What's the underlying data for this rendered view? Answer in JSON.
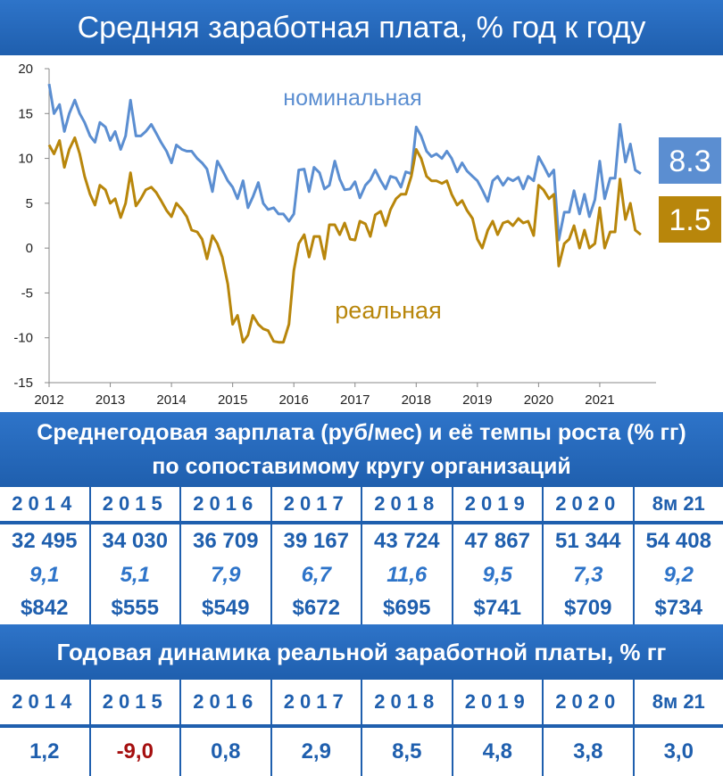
{
  "title": "Средняя заработная плата, % год к году",
  "chart_data": {
    "type": "line",
    "x_ticks": [
      "2012",
      "2013",
      "2014",
      "2015",
      "2016",
      "2017",
      "2018",
      "2019",
      "2020",
      "2021"
    ],
    "y_ticks": [
      "20",
      "15",
      "10",
      "5",
      "0",
      "-5",
      "-10",
      "-15"
    ],
    "ylim": [
      -15,
      20
    ],
    "xlim": [
      2012.0,
      2021.92
    ],
    "grid": false,
    "annotations": {
      "nominal_label": "номинальная",
      "real_label": "реальная"
    },
    "end_badges": {
      "nominal": "8.3",
      "real": "1.5"
    },
    "colors": {
      "nominal": "#5b8ed1",
      "real": "#b8860b"
    },
    "series": [
      {
        "name": "номинальная",
        "x": [
          2012.0,
          2012.08,
          2012.17,
          2012.25,
          2012.33,
          2012.42,
          2012.5,
          2012.58,
          2012.67,
          2012.75,
          2012.83,
          2012.92,
          2013.0,
          2013.08,
          2013.17,
          2013.25,
          2013.33,
          2013.42,
          2013.5,
          2013.58,
          2013.67,
          2013.75,
          2013.83,
          2013.92,
          2014.0,
          2014.08,
          2014.17,
          2014.25,
          2014.33,
          2014.42,
          2014.5,
          2014.58,
          2014.67,
          2014.75,
          2014.83,
          2014.92,
          2015.0,
          2015.08,
          2015.17,
          2015.25,
          2015.33,
          2015.42,
          2015.5,
          2015.58,
          2015.67,
          2015.75,
          2015.83,
          2015.92,
          2016.0,
          2016.08,
          2016.17,
          2016.25,
          2016.33,
          2016.42,
          2016.5,
          2016.58,
          2016.67,
          2016.75,
          2016.83,
          2016.92,
          2017.0,
          2017.08,
          2017.17,
          2017.25,
          2017.33,
          2017.42,
          2017.5,
          2017.58,
          2017.67,
          2017.75,
          2017.83,
          2017.92,
          2018.0,
          2018.08,
          2018.17,
          2018.25,
          2018.33,
          2018.42,
          2018.5,
          2018.58,
          2018.67,
          2018.75,
          2018.83,
          2018.92,
          2019.0,
          2019.08,
          2019.17,
          2019.25,
          2019.33,
          2019.42,
          2019.5,
          2019.58,
          2019.67,
          2019.75,
          2019.83,
          2019.92,
          2020.0,
          2020.08,
          2020.17,
          2020.25,
          2020.33,
          2020.42,
          2020.5,
          2020.58,
          2020.67,
          2020.75,
          2020.83,
          2020.92,
          2021.0,
          2021.08,
          2021.17,
          2021.25,
          2021.33,
          2021.42,
          2021.5,
          2021.58,
          2021.67
        ],
        "y": [
          18.3,
          15.0,
          16.0,
          13.0,
          15.0,
          16.5,
          15.0,
          14.0,
          12.5,
          11.8,
          14.0,
          13.5,
          12.0,
          13.0,
          11.0,
          12.5,
          16.5,
          12.5,
          12.5,
          13.0,
          13.8,
          12.8,
          11.8,
          10.8,
          9.5,
          11.5,
          11.0,
          10.8,
          10.8,
          10.0,
          9.5,
          8.8,
          6.3,
          9.7,
          8.7,
          7.5,
          6.8,
          5.5,
          7.5,
          4.5,
          5.7,
          7.3,
          5.0,
          4.3,
          4.5,
          3.8,
          3.8,
          3.0,
          3.8,
          8.7,
          8.8,
          6.3,
          9.0,
          8.4,
          6.6,
          7.0,
          9.7,
          7.7,
          6.5,
          6.6,
          7.4,
          5.6,
          7.0,
          7.6,
          8.7,
          7.5,
          6.6,
          8.0,
          7.8,
          6.8,
          8.5,
          8.3,
          13.5,
          12.5,
          10.8,
          10.2,
          10.5,
          10.0,
          10.8,
          10.0,
          8.5,
          9.5,
          8.6,
          8.0,
          7.5,
          6.5,
          5.2,
          7.5,
          8.0,
          7.0,
          7.8,
          7.5,
          7.9,
          6.6,
          8.0,
          7.5,
          10.2,
          9.2,
          8.0,
          8.7,
          0.9,
          4.0,
          4.0,
          6.4,
          3.8,
          6.0,
          3.5,
          5.4,
          9.7,
          5.5,
          7.8,
          7.8,
          13.8,
          9.6,
          11.6,
          8.7,
          8.3
        ]
      },
      {
        "name": "реальная",
        "x": [
          2012.0,
          2012.08,
          2012.17,
          2012.25,
          2012.33,
          2012.42,
          2012.5,
          2012.58,
          2012.67,
          2012.75,
          2012.83,
          2012.92,
          2013.0,
          2013.08,
          2013.17,
          2013.25,
          2013.33,
          2013.42,
          2013.5,
          2013.58,
          2013.67,
          2013.75,
          2013.83,
          2013.92,
          2014.0,
          2014.08,
          2014.17,
          2014.25,
          2014.33,
          2014.42,
          2014.5,
          2014.58,
          2014.67,
          2014.75,
          2014.83,
          2014.92,
          2015.0,
          2015.08,
          2015.17,
          2015.25,
          2015.33,
          2015.42,
          2015.5,
          2015.58,
          2015.67,
          2015.75,
          2015.83,
          2015.92,
          2016.0,
          2016.08,
          2016.17,
          2016.25,
          2016.33,
          2016.42,
          2016.5,
          2016.58,
          2016.67,
          2016.75,
          2016.83,
          2016.92,
          2017.0,
          2017.08,
          2017.17,
          2017.25,
          2017.33,
          2017.42,
          2017.5,
          2017.58,
          2017.67,
          2017.75,
          2017.83,
          2017.92,
          2018.0,
          2018.08,
          2018.17,
          2018.25,
          2018.33,
          2018.42,
          2018.5,
          2018.58,
          2018.67,
          2018.75,
          2018.83,
          2018.92,
          2019.0,
          2019.08,
          2019.17,
          2019.25,
          2019.33,
          2019.42,
          2019.5,
          2019.58,
          2019.67,
          2019.75,
          2019.83,
          2019.92,
          2020.0,
          2020.08,
          2020.17,
          2020.25,
          2020.33,
          2020.42,
          2020.5,
          2020.58,
          2020.67,
          2020.75,
          2020.83,
          2020.92,
          2021.0,
          2021.08,
          2021.17,
          2021.25,
          2021.33,
          2021.42,
          2021.5,
          2021.58,
          2021.67
        ],
        "y": [
          11.5,
          10.5,
          12.0,
          9.0,
          11.0,
          12.3,
          10.5,
          8.0,
          6.0,
          4.8,
          7.0,
          6.5,
          5.0,
          5.5,
          3.4,
          5.0,
          8.4,
          4.7,
          5.5,
          6.5,
          6.8,
          6.2,
          5.3,
          4.2,
          3.5,
          5.0,
          4.3,
          3.5,
          2.0,
          1.8,
          1.0,
          -1.2,
          1.4,
          0.5,
          -1.0,
          -4.0,
          -8.5,
          -7.5,
          -10.5,
          -9.7,
          -7.5,
          -8.5,
          -9.0,
          -9.2,
          -10.4,
          -10.5,
          -10.5,
          -8.5,
          -2.5,
          0.5,
          1.5,
          -1.0,
          1.3,
          1.3,
          -1.2,
          2.6,
          2.6,
          1.5,
          2.8,
          1.0,
          0.9,
          3.0,
          2.7,
          1.3,
          3.7,
          4.1,
          2.5,
          4.3,
          5.5,
          6.0,
          6.0,
          8.0,
          11.0,
          10.0,
          8.0,
          7.5,
          7.5,
          7.2,
          7.5,
          6.0,
          4.8,
          5.3,
          4.2,
          3.3,
          1.0,
          0.0,
          2.0,
          3.0,
          1.5,
          2.8,
          3.0,
          2.5,
          3.3,
          2.8,
          3.0,
          1.4,
          7.0,
          6.5,
          5.5,
          6.0,
          -2.0,
          0.5,
          1.0,
          2.5,
          0.0,
          2.0,
          0.0,
          0.5,
          4.5,
          0.0,
          1.8,
          1.8,
          7.7,
          3.2,
          5.0,
          2.0,
          1.5
        ]
      }
    ]
  },
  "table1": {
    "heading_line1": "Среднегодовая зарплата (руб/мес) и её темпы роста (% гг)",
    "heading_line2": "по сопоставимому кругу организаций",
    "years": [
      "2014",
      "2015",
      "2016",
      "2017",
      "2018",
      "2019",
      "2020",
      "8м 21"
    ],
    "wages": [
      "32 495",
      "34 030",
      "36 709",
      "39 167",
      "43 724",
      "47 867",
      "51 344",
      "54 408"
    ],
    "growth": [
      "9,1",
      "5,1",
      "7,9",
      "6,7",
      "11,6",
      "9,5",
      "7,3",
      "9,2"
    ],
    "usd": [
      "$842",
      "$555",
      "$549",
      "$672",
      "$695",
      "$741",
      "$709",
      "$734"
    ]
  },
  "table2": {
    "heading": "Годовая динамика реальной заработной платы, % гг",
    "years": [
      "2014",
      "2015",
      "2016",
      "2017",
      "2018",
      "2019",
      "2020",
      "8м 21"
    ],
    "values": [
      "1,2",
      "-9,0",
      "0,8",
      "2,9",
      "8,5",
      "4,8",
      "3,8",
      "3,0"
    ]
  }
}
